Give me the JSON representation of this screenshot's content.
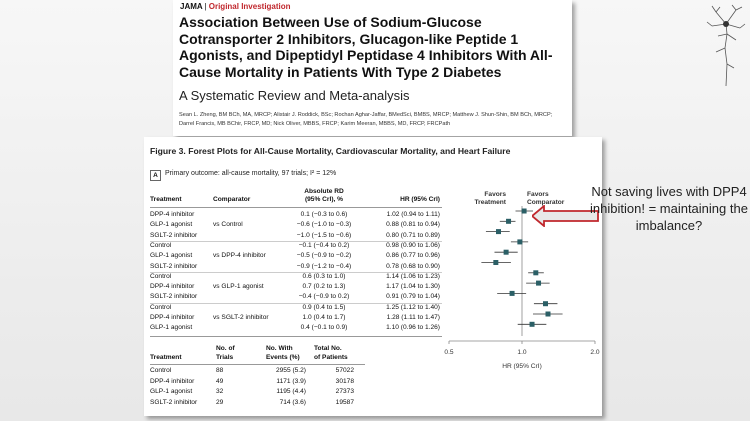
{
  "header": {
    "journal": "JAMA",
    "separator": "|",
    "section": "Original Investigation",
    "title": "Association Between Use of Sodium-Glucose Cotransporter 2 Inhibitors, Glucagon-like Peptide 1 Agonists, and Dipeptidyl Peptidase 4 Inhibitors With All-Cause Mortality in Patients With Type 2 Diabetes",
    "subtitle": "A Systematic Review and Meta-analysis",
    "authors": "Sean L. Zheng, BM BCh, MA, MRCP; Alistair J. Roddick, BSc; Rochan Aghar-Jaffar, BMedSci, BMBS, MRCP; Matthew J. Shun-Shin, BM BCh, MRCP; Darrel Francis, MB BChir, FRCP, MD; Nick Oliver, MBBS, FRCP; Karim Meeran, MBBS, MD, FRCP, FRCPath"
  },
  "figure": {
    "title": "Figure 3. Forest Plots for All-Cause Mortality, Cardiovascular Mortality, and Heart Failure",
    "panel": "A",
    "primary_outcome": "Primary outcome: all-cause mortality, 97 trials; I² = 12%",
    "headers": {
      "treatment": "Treatment",
      "comparator": "Comparator",
      "rd_line1": "Absolute RD",
      "rd_line2": "(95% CrI), %",
      "hr": "HR (95% CrI)",
      "favors_treatment_1": "Favors",
      "favors_treatment_2": "Treatment",
      "favors_comparator_1": "Favors",
      "favors_comparator_2": "Comparator"
    },
    "rows": [
      {
        "treatment": "DPP-4 inhibitor",
        "comparator": "",
        "rd": "0.1 (−0.3 to 0.6)",
        "hr": "1.02 (0.94 to 1.11)"
      },
      {
        "treatment": "GLP-1 agonist",
        "comparator": "vs Control",
        "rd": "−0.6 (−1.0 to −0.3)",
        "hr": "0.88 (0.81 to 0.94)"
      },
      {
        "treatment": "SGLT-2 inhibitor",
        "comparator": "",
        "rd": "−1.0 (−1.5 to −0.6)",
        "hr": "0.80 (0.71 to 0.89)"
      },
      {
        "treatment": "Control",
        "comparator": "",
        "rd": "−0.1 (−0.4 to 0.2)",
        "hr": "0.98 (0.90 to 1.06)"
      },
      {
        "treatment": "GLP-1 agonist",
        "comparator": "vs DPP-4 inhibitor",
        "rd": "−0.5 (−0.9 to −0.2)",
        "hr": "0.86 (0.77 to 0.96)"
      },
      {
        "treatment": "SGLT-2 inhibitor",
        "comparator": "",
        "rd": "−0.9 (−1.2 to −0.4)",
        "hr": "0.78 (0.68 to 0.90)"
      },
      {
        "treatment": "Control",
        "comparator": "",
        "rd": "0.6 (0.3 to 1.0)",
        "hr": "1.14 (1.06 to 1.23)"
      },
      {
        "treatment": "DPP-4 inhibitor",
        "comparator": "vs GLP-1 agonist",
        "rd": "0.7 (0.2 to 1.3)",
        "hr": "1.17 (1.04 to 1.30)"
      },
      {
        "treatment": "SGLT-2 inhibitor",
        "comparator": "",
        "rd": "−0.4 (−0.9 to 0.2)",
        "hr": "0.91 (0.79 to 1.04)"
      },
      {
        "treatment": "Control",
        "comparator": "",
        "rd": "0.9 (0.4 to 1.5)",
        "hr": "1.25 (1.12 to 1.40)"
      },
      {
        "treatment": "DPP-4 inhibitor",
        "comparator": "vs SGLT-2 inhibitor",
        "rd": "1.0 (0.4 to 1.7)",
        "hr": "1.28 (1.11 to 1.47)"
      },
      {
        "treatment": "GLP-1 agonist",
        "comparator": "",
        "rd": "0.4 (−0.1 to 0.9)",
        "hr": "1.10 (0.96 to 1.26)"
      }
    ],
    "summary_headers": {
      "treatment": "Treatment",
      "trials_1": "No. of",
      "trials_2": "Trials",
      "events_1": "No. With",
      "events_2": "Events (%)",
      "patients_1": "Total No.",
      "patients_2": "of Patients"
    },
    "summary_rows": [
      {
        "treatment": "Control",
        "trials": "88",
        "events": "2955 (5.2)",
        "patients": "57022"
      },
      {
        "treatment": "DPP-4 inhibitor",
        "trials": "49",
        "events": "1171 (3.9)",
        "patients": "30178"
      },
      {
        "treatment": "GLP-1 agonist",
        "trials": "32",
        "events": "1195 (4.4)",
        "patients": "27373"
      },
      {
        "treatment": "SGLT-2 inhibitor",
        "trials": "29",
        "events": "714 (3.6)",
        "patients": "19587"
      }
    ],
    "axis_label": "HR (95% CrI)"
  },
  "chart_data": {
    "type": "scatter",
    "title": "",
    "xlabel": "HR (95% CrI)",
    "xscale": "log",
    "xlim": [
      0.5,
      2.0
    ],
    "xticks": [
      "0.5",
      "1.0",
      "2.0"
    ],
    "reference_line": 1.0,
    "points": [
      {
        "hr": 1.02,
        "lo": 0.94,
        "hi": 1.11
      },
      {
        "hr": 0.88,
        "lo": 0.81,
        "hi": 0.94
      },
      {
        "hr": 0.8,
        "lo": 0.71,
        "hi": 0.89
      },
      {
        "hr": 0.98,
        "lo": 0.9,
        "hi": 1.06
      },
      {
        "hr": 0.86,
        "lo": 0.77,
        "hi": 0.96
      },
      {
        "hr": 0.78,
        "lo": 0.68,
        "hi": 0.9
      },
      {
        "hr": 1.14,
        "lo": 1.06,
        "hi": 1.23
      },
      {
        "hr": 1.17,
        "lo": 1.04,
        "hi": 1.3
      },
      {
        "hr": 0.91,
        "lo": 0.79,
        "hi": 1.04
      },
      {
        "hr": 1.25,
        "lo": 1.12,
        "hi": 1.4
      },
      {
        "hr": 1.28,
        "lo": 1.11,
        "hi": 1.47
      },
      {
        "hr": 1.1,
        "lo": 0.96,
        "hi": 1.26
      }
    ],
    "marker_color": "#2b5f66"
  },
  "annotation": {
    "text": "Not saving lives with DPP4 inhibition! = maintaining the imbalance?",
    "arrow_color": "#c0272d"
  }
}
